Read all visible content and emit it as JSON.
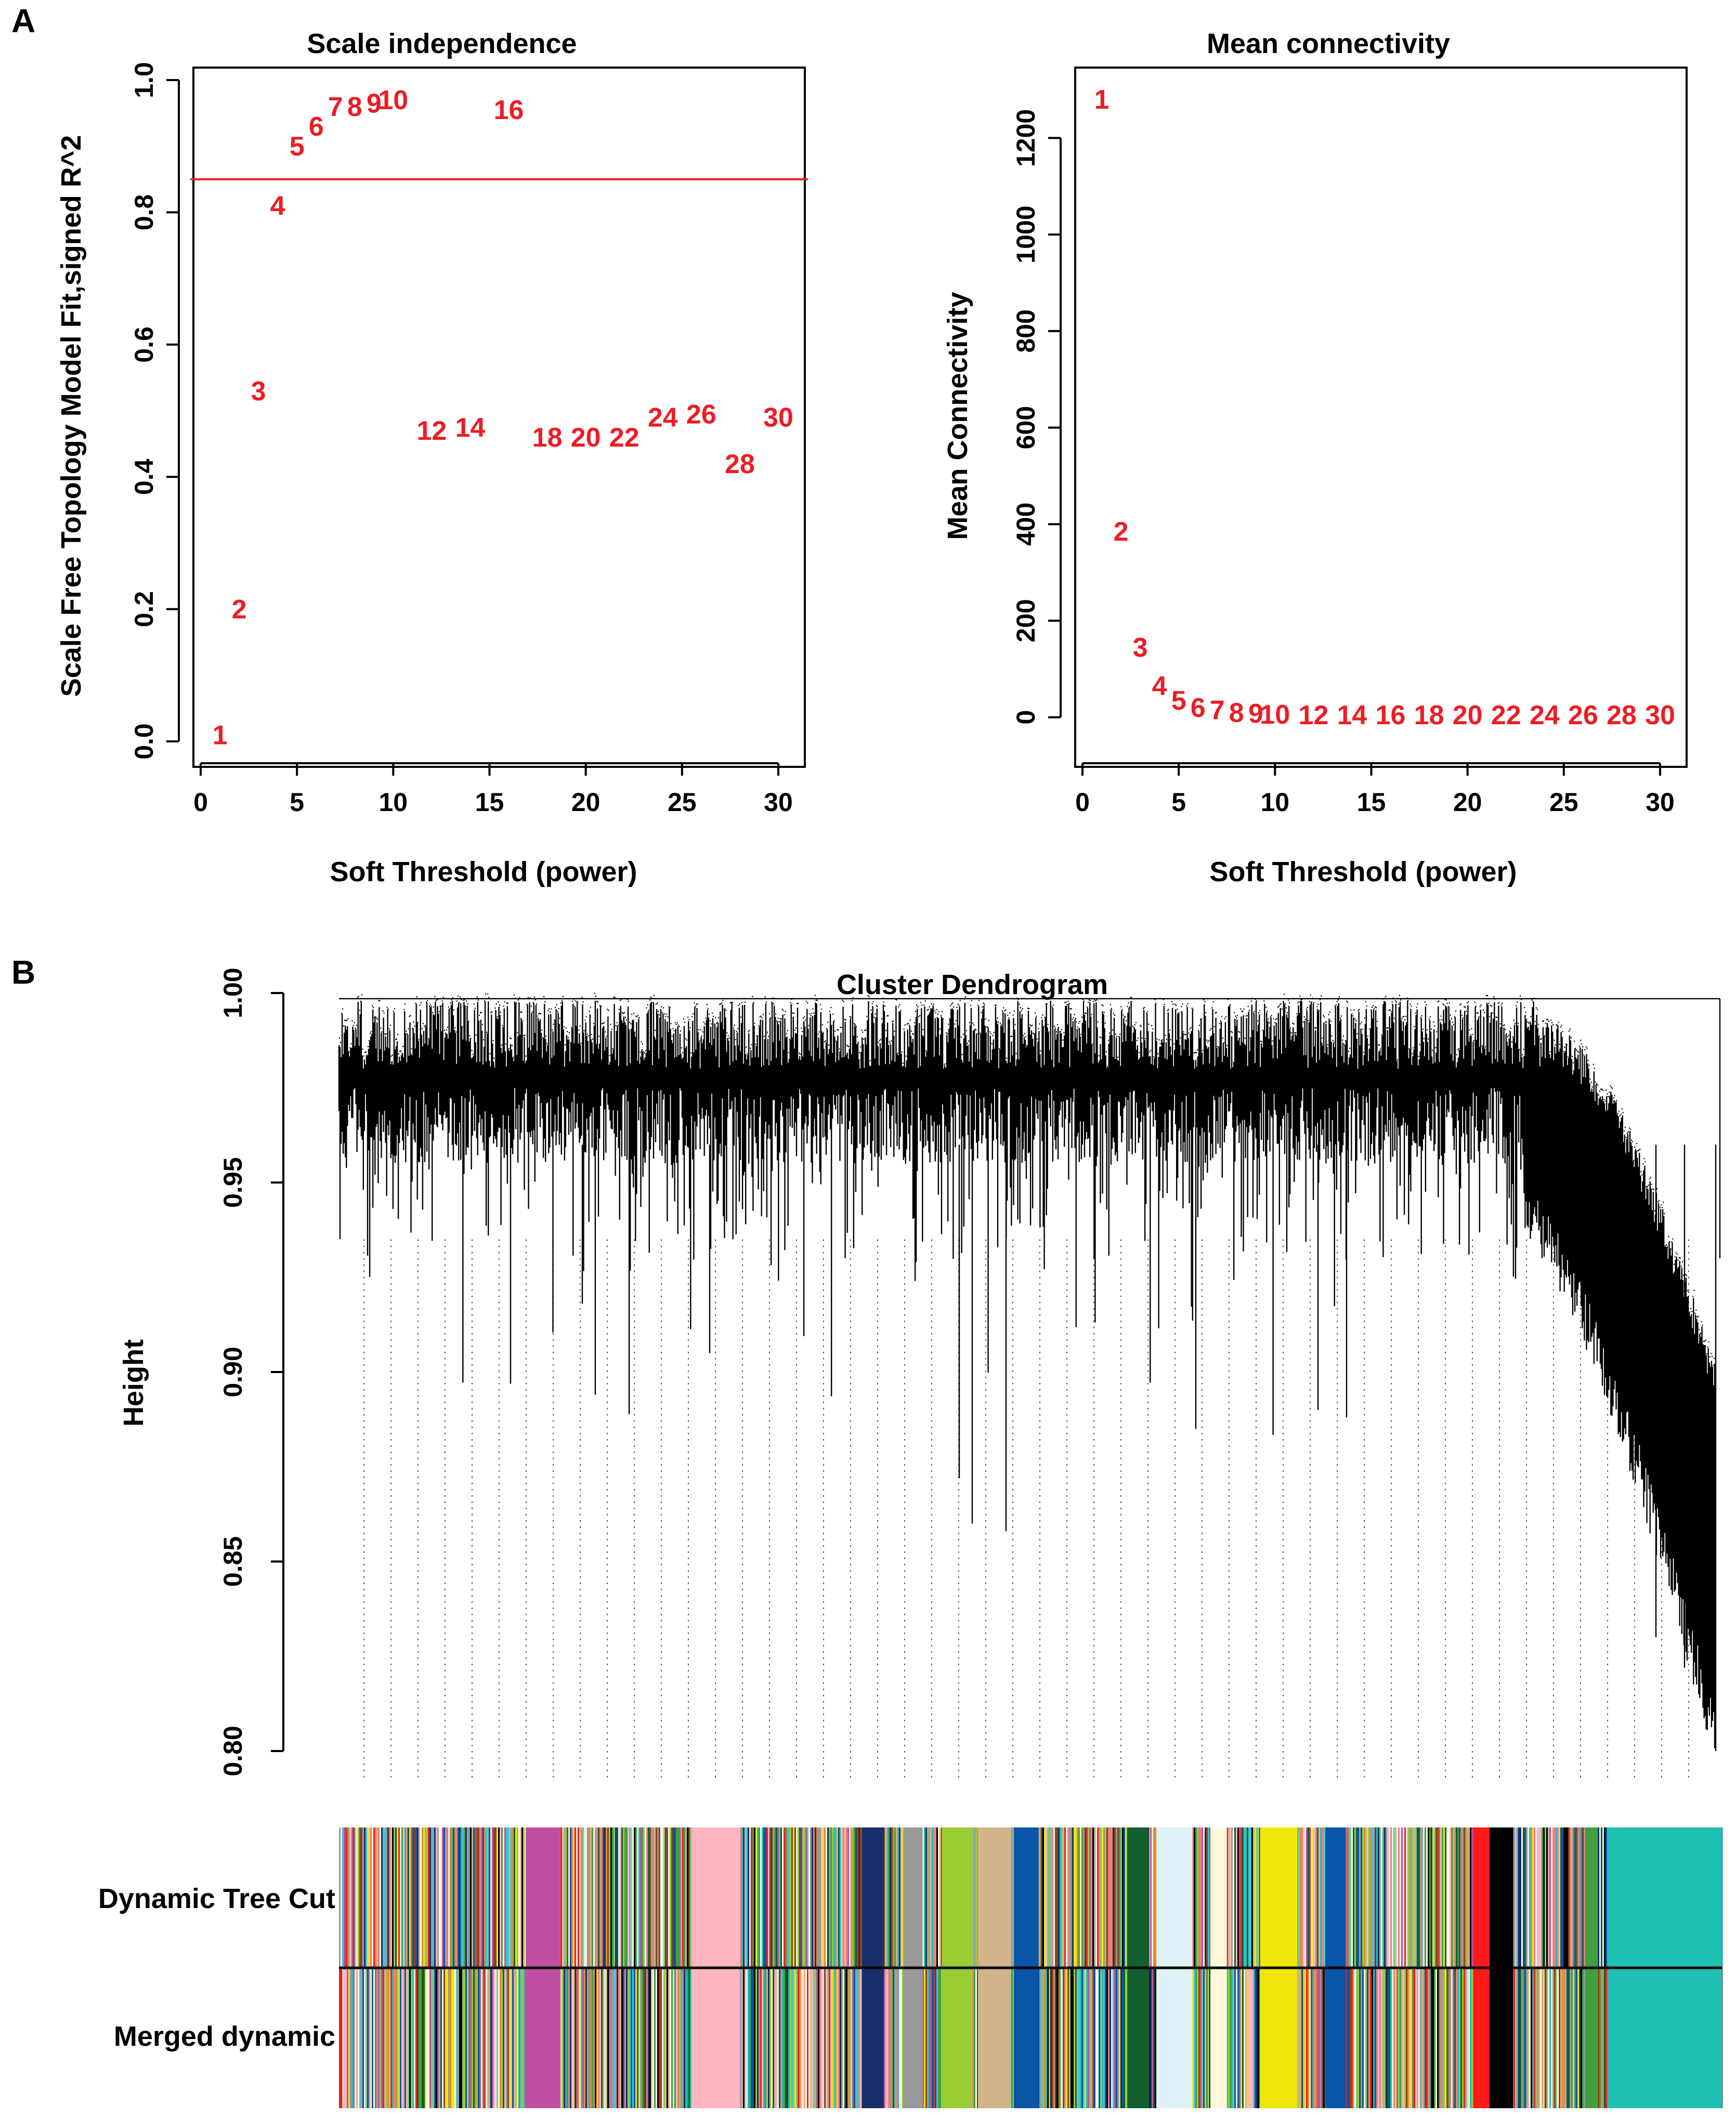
{
  "panel_letters": {
    "a": "A",
    "b": "B"
  },
  "chart_data": [
    {
      "type": "scatter",
      "title": "Scale independence",
      "xlabel": "Soft Threshold (power)",
      "ylabel": "Scale Free Topology Model Fit,signed R^2",
      "xlim": [
        0,
        31
      ],
      "ylim": [
        0,
        1
      ],
      "xticks": [
        0,
        5,
        10,
        15,
        20,
        25,
        30
      ],
      "yticks": [
        0.0,
        0.2,
        0.4,
        0.6,
        0.8,
        1.0
      ],
      "ytick_labels": [
        "0.0",
        "0.2",
        "0.4",
        "0.6",
        "0.8",
        "1.0"
      ],
      "hline": 0.85,
      "point_color": "#ee1c24",
      "points": [
        {
          "x": 1,
          "y": 0.01,
          "label": "1"
        },
        {
          "x": 2,
          "y": 0.2,
          "label": "2"
        },
        {
          "x": 3,
          "y": 0.53,
          "label": "3"
        },
        {
          "x": 4,
          "y": 0.81,
          "label": "4"
        },
        {
          "x": 5,
          "y": 0.9,
          "label": "5"
        },
        {
          "x": 6,
          "y": 0.93,
          "label": "6"
        },
        {
          "x": 7,
          "y": 0.96,
          "label": "7"
        },
        {
          "x": 8,
          "y": 0.96,
          "label": "8"
        },
        {
          "x": 9,
          "y": 0.965,
          "label": "9"
        },
        {
          "x": 10,
          "y": 0.97,
          "label": "10"
        },
        {
          "x": 12,
          "y": 0.47,
          "label": "12"
        },
        {
          "x": 14,
          "y": 0.475,
          "label": "14"
        },
        {
          "x": 16,
          "y": 0.955,
          "label": "16"
        },
        {
          "x": 18,
          "y": 0.46,
          "label": "18"
        },
        {
          "x": 20,
          "y": 0.46,
          "label": "20"
        },
        {
          "x": 22,
          "y": 0.46,
          "label": "22"
        },
        {
          "x": 24,
          "y": 0.49,
          "label": "24"
        },
        {
          "x": 26,
          "y": 0.495,
          "label": "26"
        },
        {
          "x": 28,
          "y": 0.42,
          "label": "28"
        },
        {
          "x": 30,
          "y": 0.49,
          "label": "30"
        }
      ]
    },
    {
      "type": "scatter",
      "title": "Mean connectivity",
      "xlabel": "Soft Threshold (power)",
      "ylabel": "Mean Connectivity",
      "xlim": [
        0,
        31
      ],
      "ylim": [
        -50,
        1320
      ],
      "xticks": [
        0,
        5,
        10,
        15,
        20,
        25,
        30
      ],
      "yticks": [
        0,
        200,
        400,
        600,
        800,
        1000,
        1200
      ],
      "ytick_labels": [
        "0",
        "200",
        "400",
        "600",
        "800",
        "1000",
        "1200"
      ],
      "point_color": "#ee1c24",
      "points": [
        {
          "x": 1,
          "y": 1280,
          "label": "1"
        },
        {
          "x": 2,
          "y": 385,
          "label": "2"
        },
        {
          "x": 3,
          "y": 145,
          "label": "3"
        },
        {
          "x": 4,
          "y": 65,
          "label": "4"
        },
        {
          "x": 5,
          "y": 35,
          "label": "5"
        },
        {
          "x": 6,
          "y": 20,
          "label": "6"
        },
        {
          "x": 7,
          "y": 15,
          "label": "7"
        },
        {
          "x": 8,
          "y": 10,
          "label": "8"
        },
        {
          "x": 9,
          "y": 8,
          "label": "9"
        },
        {
          "x": 10,
          "y": 6,
          "label": "10"
        },
        {
          "x": 12,
          "y": 5,
          "label": "12"
        },
        {
          "x": 14,
          "y": 5,
          "label": "14"
        },
        {
          "x": 16,
          "y": 5,
          "label": "16"
        },
        {
          "x": 18,
          "y": 5,
          "label": "18"
        },
        {
          "x": 20,
          "y": 5,
          "label": "20"
        },
        {
          "x": 22,
          "y": 5,
          "label": "22"
        },
        {
          "x": 24,
          "y": 5,
          "label": "24"
        },
        {
          "x": 26,
          "y": 5,
          "label": "26"
        },
        {
          "x": 28,
          "y": 5,
          "label": "28"
        },
        {
          "x": 30,
          "y": 5,
          "label": "30"
        }
      ]
    },
    {
      "type": "dendrogram",
      "title": "Cluster Dendrogram",
      "ylabel": "Height",
      "ylim": [
        0.8,
        1.0
      ],
      "yticks": [
        0.8,
        0.85,
        0.9,
        0.95,
        1.0
      ],
      "ytick_labels": [
        "0.80",
        "0.85",
        "0.90",
        "0.95",
        "1.00"
      ],
      "color_bars": [
        {
          "label": "Dynamic Tree Cut"
        },
        {
          "label": "Merged dynamic"
        }
      ],
      "module_colors": [
        "#c04fa4",
        "#ffb6c1",
        "#1a2f6b",
        "#999999",
        "#9acd32",
        "#d2b48c",
        "#0a56a8",
        "#3ec6d8",
        "#125f2f",
        "#dff2f8",
        "#fff8dc",
        "#7fc97f",
        "#f0e60a",
        "#ff1a1a",
        "#000000",
        "#20c0b4",
        "#40a040",
        "#f08080",
        "#e58a2f",
        "#8b4513"
      ]
    }
  ]
}
